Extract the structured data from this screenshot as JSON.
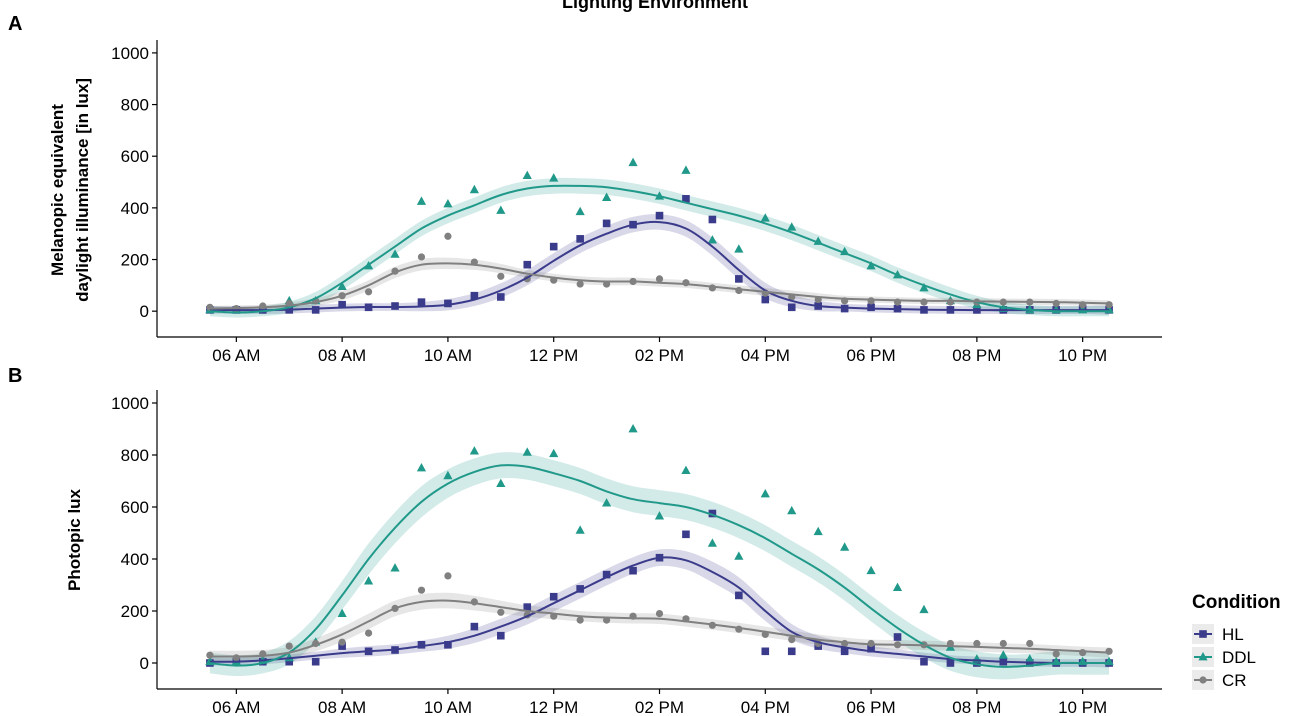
{
  "title": "Lighting Environment",
  "legend": {
    "title": "Condition",
    "entries": [
      {
        "name": "HL",
        "color": "#3b3b8c",
        "shape": "square"
      },
      {
        "name": "DDL",
        "color": "#21998a",
        "shape": "triangle"
      },
      {
        "name": "CR",
        "color": "#808080",
        "shape": "circle"
      }
    ],
    "placement": "right"
  },
  "chart_data": [
    {
      "panel_label": "A",
      "type": "scatter",
      "ylabel_lines": [
        "Melanopic equivalent",
        "daylight illuminance [in lux]"
      ],
      "xlabel": "",
      "x_ticks": [
        "06 AM",
        "08 AM",
        "10 AM",
        "12 PM",
        "02 PM",
        "04 PM",
        "06 PM",
        "08 PM",
        "10 PM"
      ],
      "x_tick_hours": [
        6,
        8,
        10,
        12,
        14,
        16,
        18,
        20,
        22
      ],
      "y_ticks": [
        "0",
        "200",
        "400",
        "600",
        "800",
        "1000"
      ],
      "y_tick_values": [
        0,
        200,
        400,
        600,
        800,
        1000
      ],
      "xlim": [
        4.5,
        23.5
      ],
      "ylim": [
        -100,
        1050
      ],
      "grid": false,
      "trend": "loess smooth with confidence band",
      "series": [
        {
          "name": "HL",
          "x": [
            5.5,
            6,
            6.5,
            7,
            7.5,
            8,
            8.5,
            9,
            9.5,
            10,
            10.5,
            11,
            11.5,
            12,
            12.5,
            13,
            13.5,
            14,
            14.5,
            15,
            15.5,
            16,
            16.5,
            17,
            17.5,
            18,
            18.5,
            19,
            19.5,
            20,
            20.5,
            21,
            21.5,
            22,
            22.5
          ],
          "y": [
            5,
            5,
            5,
            5,
            5,
            25,
            15,
            20,
            35,
            30,
            60,
            55,
            180,
            250,
            280,
            340,
            335,
            370,
            435,
            355,
            125,
            45,
            15,
            20,
            10,
            15,
            10,
            5,
            5,
            5,
            5,
            5,
            5,
            10,
            5
          ],
          "smooth": [
            5,
            4,
            4,
            6,
            10,
            14,
            16,
            16,
            18,
            25,
            45,
            80,
            130,
            195,
            255,
            300,
            335,
            345,
            320,
            250,
            160,
            80,
            40,
            20,
            14,
            10,
            8,
            6,
            5,
            4,
            4,
            4,
            4,
            4,
            4
          ],
          "band": [
            15,
            15,
            15,
            15,
            15,
            15,
            15,
            15,
            18,
            22,
            25,
            28,
            30,
            30,
            30,
            30,
            30,
            30,
            32,
            35,
            35,
            30,
            25,
            20,
            15,
            15,
            15,
            15,
            15,
            15,
            15,
            15,
            15,
            15,
            18
          ]
        },
        {
          "name": "DDL",
          "x": [
            5.5,
            6,
            6.5,
            7,
            7.5,
            8,
            8.5,
            9,
            9.5,
            10,
            10.5,
            11,
            11.5,
            12,
            12.5,
            13,
            13.5,
            14,
            14.5,
            15,
            15.5,
            16,
            16.5,
            17,
            17.5,
            18,
            18.5,
            19,
            19.5,
            20,
            20.5,
            21,
            21.5,
            22,
            22.5
          ],
          "y": [
            5,
            5,
            10,
            40,
            40,
            95,
            175,
            220,
            425,
            415,
            470,
            390,
            525,
            515,
            385,
            440,
            575,
            445,
            545,
            275,
            240,
            360,
            325,
            270,
            230,
            175,
            140,
            90,
            40,
            25,
            10,
            5,
            5,
            5,
            5
          ],
          "smooth": [
            0,
            -5,
            0,
            15,
            50,
            110,
            180,
            250,
            320,
            370,
            410,
            450,
            475,
            485,
            485,
            480,
            465,
            445,
            420,
            395,
            370,
            340,
            305,
            265,
            225,
            185,
            140,
            100,
            65,
            35,
            15,
            5,
            0,
            0,
            0
          ],
          "band": [
            20,
            20,
            20,
            22,
            25,
            28,
            30,
            30,
            30,
            30,
            30,
            30,
            30,
            30,
            30,
            30,
            30,
            30,
            30,
            30,
            30,
            30,
            30,
            30,
            30,
            30,
            30,
            30,
            28,
            25,
            22,
            20,
            20,
            20,
            20
          ]
        },
        {
          "name": "CR",
          "x": [
            5.5,
            6,
            6.5,
            7,
            7.5,
            8,
            8.5,
            9,
            9.5,
            10,
            10.5,
            11,
            11.5,
            12,
            12.5,
            13,
            13.5,
            14,
            14.5,
            15,
            15.5,
            16,
            16.5,
            17,
            17.5,
            18,
            18.5,
            19,
            19.5,
            20,
            20.5,
            21,
            21.5,
            22,
            22.5
          ],
          "y": [
            15,
            10,
            20,
            30,
            40,
            60,
            75,
            155,
            210,
            290,
            190,
            135,
            125,
            120,
            105,
            105,
            115,
            125,
            110,
            90,
            80,
            70,
            55,
            45,
            40,
            40,
            35,
            35,
            35,
            35,
            35,
            35,
            30,
            25,
            25
          ],
          "smooth": [
            10,
            12,
            15,
            22,
            35,
            60,
            100,
            150,
            180,
            185,
            180,
            165,
            145,
            130,
            120,
            115,
            115,
            110,
            105,
            95,
            85,
            75,
            65,
            55,
            48,
            45,
            42,
            40,
            40,
            38,
            37,
            36,
            35,
            33,
            30
          ],
          "band": [
            10,
            10,
            10,
            12,
            15,
            18,
            20,
            22,
            22,
            22,
            20,
            18,
            15,
            15,
            15,
            15,
            15,
            15,
            15,
            15,
            15,
            15,
            15,
            15,
            12,
            12,
            12,
            12,
            12,
            12,
            12,
            12,
            12,
            12,
            12
          ]
        }
      ]
    },
    {
      "panel_label": "B",
      "type": "scatter",
      "ylabel_lines": [
        "Photopic lux"
      ],
      "xlabel": "",
      "x_ticks": [
        "06 AM",
        "08 AM",
        "10 AM",
        "12 PM",
        "02 PM",
        "04 PM",
        "06 PM",
        "08 PM",
        "10 PM"
      ],
      "x_tick_hours": [
        6,
        8,
        10,
        12,
        14,
        16,
        18,
        20,
        22
      ],
      "y_ticks": [
        "0",
        "200",
        "400",
        "600",
        "800",
        "1000"
      ],
      "y_tick_values": [
        0,
        200,
        400,
        600,
        800,
        1000
      ],
      "xlim": [
        4.5,
        23.5
      ],
      "ylim": [
        -100,
        1050
      ],
      "grid": false,
      "trend": "loess smooth with confidence band",
      "series": [
        {
          "name": "HL",
          "x": [
            5.5,
            6,
            6.5,
            7,
            7.5,
            8,
            8.5,
            9,
            9.5,
            10,
            10.5,
            11,
            11.5,
            12,
            12.5,
            13,
            13.5,
            14,
            14.5,
            15,
            15.5,
            16,
            16.5,
            17,
            17.5,
            18,
            18.5,
            19,
            19.5,
            20,
            20.5,
            21,
            21.5,
            22,
            22.5
          ],
          "y": [
            0,
            5,
            5,
            5,
            5,
            65,
            45,
            50,
            70,
            70,
            140,
            105,
            215,
            255,
            285,
            340,
            355,
            405,
            495,
            575,
            260,
            45,
            45,
            65,
            45,
            55,
            100,
            5,
            0,
            0,
            5,
            0,
            0,
            0,
            0
          ],
          "smooth": [
            5,
            5,
            10,
            18,
            28,
            38,
            45,
            52,
            65,
            80,
            105,
            140,
            180,
            230,
            280,
            330,
            375,
            405,
            395,
            350,
            290,
            200,
            120,
            80,
            60,
            45,
            35,
            25,
            15,
            10,
            5,
            2,
            0,
            0,
            0
          ],
          "band": [
            15,
            15,
            15,
            15,
            15,
            18,
            20,
            20,
            22,
            25,
            28,
            30,
            32,
            32,
            32,
            32,
            32,
            32,
            35,
            40,
            40,
            38,
            30,
            25,
            22,
            20,
            18,
            15,
            15,
            15,
            15,
            15,
            15,
            15,
            18
          ]
        },
        {
          "name": "DDL",
          "x": [
            5.5,
            6,
            6.5,
            7,
            7.5,
            8,
            8.5,
            9,
            9.5,
            10,
            10.5,
            11,
            11.5,
            12,
            12.5,
            13,
            13.5,
            14,
            14.5,
            15,
            15.5,
            16,
            16.5,
            17,
            17.5,
            18,
            18.5,
            19,
            19.5,
            20,
            20.5,
            21,
            21.5,
            22,
            22.5
          ],
          "y": [
            5,
            5,
            10,
            20,
            80,
            190,
            315,
            365,
            750,
            720,
            815,
            690,
            810,
            805,
            510,
            615,
            900,
            565,
            740,
            460,
            410,
            650,
            585,
            505,
            445,
            355,
            290,
            205,
            60,
            15,
            30,
            15,
            5,
            5,
            5
          ],
          "smooth": [
            0,
            -10,
            0,
            40,
            130,
            260,
            400,
            520,
            620,
            690,
            735,
            760,
            755,
            730,
            700,
            660,
            630,
            615,
            600,
            570,
            530,
            480,
            420,
            360,
            290,
            210,
            135,
            70,
            20,
            -5,
            -15,
            -10,
            0,
            0,
            0
          ],
          "band": [
            40,
            40,
            40,
            45,
            50,
            55,
            60,
            60,
            60,
            55,
            52,
            50,
            50,
            50,
            50,
            50,
            50,
            50,
            50,
            50,
            50,
            50,
            50,
            50,
            50,
            50,
            50,
            50,
            50,
            50,
            48,
            45,
            45,
            45,
            45
          ]
        },
        {
          "name": "CR",
          "x": [
            5.5,
            6,
            6.5,
            7,
            7.5,
            8,
            8.5,
            9,
            9.5,
            10,
            10.5,
            11,
            11.5,
            12,
            12.5,
            13,
            13.5,
            14,
            14.5,
            15,
            15.5,
            16,
            16.5,
            17,
            17.5,
            18,
            18.5,
            19,
            19.5,
            20,
            20.5,
            21,
            21.5,
            22,
            22.5
          ],
          "y": [
            30,
            20,
            35,
            65,
            75,
            80,
            115,
            210,
            280,
            335,
            235,
            195,
            185,
            180,
            165,
            165,
            180,
            190,
            170,
            145,
            130,
            110,
            90,
            75,
            75,
            75,
            70,
            70,
            75,
            75,
            75,
            75,
            35,
            40,
            45
          ],
          "smooth": [
            25,
            25,
            28,
            40,
            70,
            110,
            160,
            210,
            235,
            240,
            230,
            215,
            200,
            190,
            180,
            175,
            172,
            170,
            160,
            148,
            135,
            120,
            105,
            90,
            80,
            72,
            70,
            68,
            65,
            62,
            58,
            55,
            50,
            45,
            40
          ],
          "band": [
            22,
            22,
            22,
            22,
            25,
            28,
            30,
            30,
            30,
            30,
            28,
            25,
            22,
            22,
            20,
            20,
            20,
            20,
            20,
            20,
            20,
            20,
            20,
            20,
            18,
            18,
            18,
            18,
            18,
            18,
            18,
            18,
            18,
            18,
            20
          ]
        }
      ]
    }
  ]
}
